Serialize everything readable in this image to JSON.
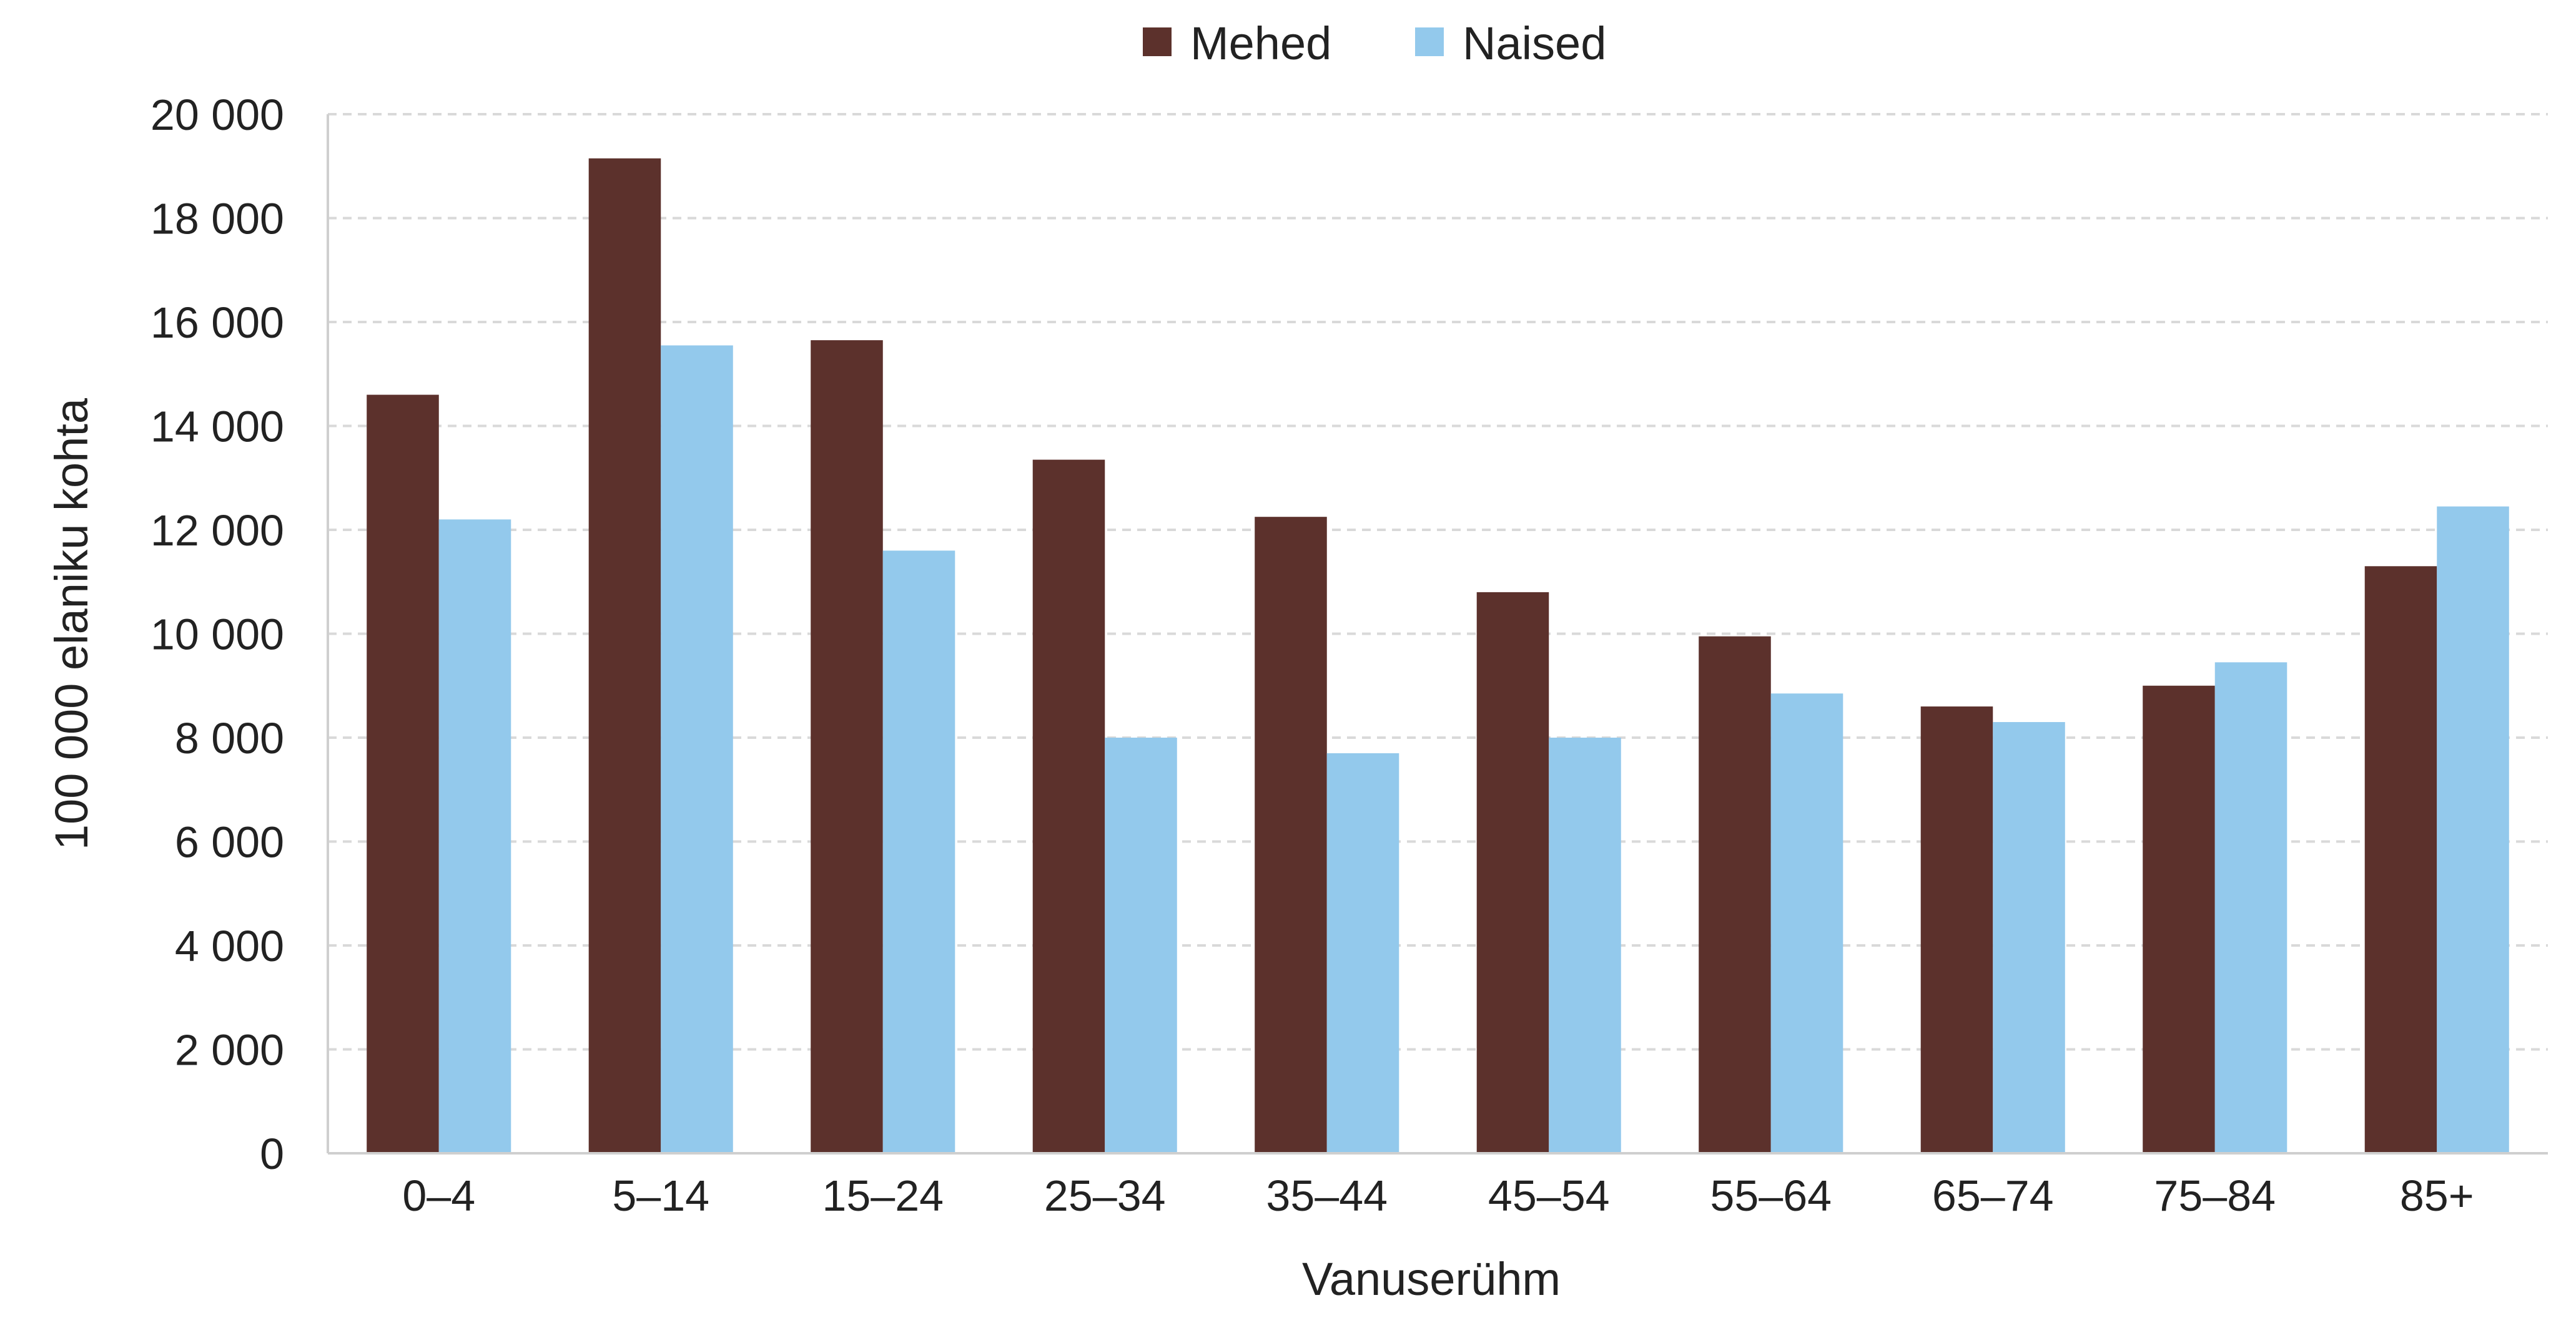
{
  "chart_data": {
    "type": "bar",
    "xlabel": "Vanuserühm",
    "ylabel": "100 000 elaniku kohta",
    "ylim": [
      0,
      20000
    ],
    "ytick_step": 2000,
    "y_ticks": [
      "0",
      "2 000",
      "4 000",
      "6 000",
      "8 000",
      "10 000",
      "12 000",
      "14 000",
      "16 000",
      "18 000",
      "20 000"
    ],
    "categories": [
      "0–4",
      "5–14",
      "15–24",
      "25–34",
      "35–44",
      "45–54",
      "55–64",
      "65–74",
      "75–84",
      "85+"
    ],
    "series": [
      {
        "name": "Mehed",
        "color": "#5c312c",
        "values": [
          14600,
          19150,
          15650,
          13350,
          12250,
          10800,
          9950,
          8600,
          9000,
          11300
        ]
      },
      {
        "name": "Naised",
        "color": "#93c9ec",
        "values": [
          12200,
          15550,
          11600,
          8000,
          7700,
          8000,
          8850,
          8300,
          9450,
          12450
        ]
      }
    ],
    "grid": true,
    "grid_color": "#d9d9d9",
    "legend_position": "top-center"
  }
}
